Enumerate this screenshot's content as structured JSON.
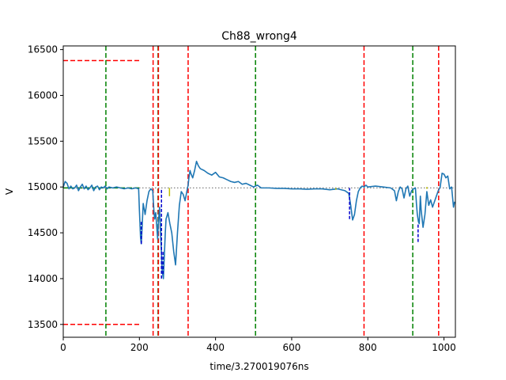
{
  "chart_data": {
    "type": "line",
    "title": "Ch88_wrong4",
    "xlabel": "time/3.270019076ns",
    "ylabel": "V",
    "xlim": [
      0,
      1030
    ],
    "ylim": [
      13360,
      16540
    ],
    "xticks": [
      0,
      200,
      400,
      600,
      800,
      1000
    ],
    "yticks": [
      13500,
      14000,
      14500,
      15000,
      15500,
      16000,
      16500
    ],
    "grid": false,
    "colors": {
      "signal": "#1f77b4",
      "red_markers": "#ff0000",
      "green_markers": "#008000",
      "baseline": "#808080",
      "dip_markers": "#0000cd",
      "small_markers": "#bfbf00"
    },
    "series": [
      {
        "style": "solid",
        "x": [
          0,
          5,
          10,
          15,
          20,
          25,
          30,
          35,
          40,
          45,
          50,
          55,
          60,
          65,
          70,
          75,
          80,
          85,
          90,
          95,
          100,
          105,
          110,
          115,
          120,
          130,
          140,
          150,
          160,
          170,
          180,
          190,
          198,
          200,
          203,
          205,
          207,
          210,
          213,
          215,
          220,
          225,
          230,
          235,
          238,
          240,
          243,
          245,
          248,
          250,
          253,
          255,
          258,
          260,
          263,
          265,
          268,
          270,
          275,
          280,
          285,
          290,
          295,
          300,
          305,
          310,
          315,
          320,
          325,
          328,
          330,
          333,
          335,
          340,
          345,
          350,
          355,
          360,
          370,
          380,
          390,
          400,
          410,
          420,
          430,
          440,
          450,
          460,
          470,
          480,
          490,
          500,
          510,
          520,
          540,
          560,
          580,
          600,
          620,
          640,
          660,
          680,
          700,
          720,
          740,
          750,
          755,
          760,
          765,
          770,
          775,
          780,
          785,
          790,
          795,
          800,
          820,
          840,
          860,
          870,
          875,
          880,
          885,
          890,
          895,
          900,
          905,
          910,
          915,
          920,
          925,
          928,
          930,
          933,
          935,
          938,
          940,
          945,
          950,
          955,
          960,
          965,
          970,
          980,
          985,
          990,
          995,
          1000,
          1005,
          1010,
          1015,
          1020,
          1025,
          1028
        ],
        "y": [
          15000,
          15060,
          15040,
          14980,
          15010,
          14980,
          14990,
          15020,
          14960,
          15000,
          15030,
          14980,
          15010,
          14970,
          14990,
          15020,
          14960,
          15000,
          15010,
          14970,
          15000,
          14990,
          15010,
          14980,
          15000,
          14990,
          15000,
          14990,
          14980,
          14990,
          14980,
          14990,
          14980,
          14750,
          14450,
          14380,
          14550,
          14820,
          14750,
          14700,
          14850,
          14950,
          14980,
          14960,
          14750,
          14650,
          14720,
          14600,
          14430,
          14620,
          14780,
          14550,
          14280,
          14080,
          14000,
          14200,
          14500,
          14650,
          14720,
          14600,
          14500,
          14300,
          14150,
          14500,
          14800,
          14950,
          14920,
          14850,
          14960,
          15020,
          15100,
          15180,
          15150,
          15100,
          15180,
          15280,
          15230,
          15200,
          15180,
          15150,
          15130,
          15160,
          15110,
          15100,
          15080,
          15060,
          15050,
          15060,
          15030,
          15040,
          15020,
          15000,
          15020,
          14990,
          14990,
          14985,
          14985,
          14980,
          14980,
          14975,
          14980,
          14980,
          14970,
          14980,
          14960,
          14930,
          14800,
          14640,
          14700,
          14850,
          14950,
          14990,
          15010,
          15000,
          15020,
          15000,
          15010,
          15000,
          14990,
          14960,
          14850,
          14950,
          15000,
          14980,
          14880,
          14980,
          15010,
          14900,
          14960,
          14980,
          14990,
          14800,
          14700,
          14620,
          14600,
          14900,
          14750,
          14560,
          14700,
          14950,
          14800,
          14860,
          14780,
          14900,
          14960,
          15000,
          15150,
          15140,
          15100,
          15120,
          14980,
          15000,
          14780,
          14840
        ]
      },
      {
        "style": "dotted",
        "x": [
          0,
          1030
        ],
        "y": [
          14990,
          14990
        ]
      }
    ],
    "vlines_red": [
      236,
      250,
      328,
      790,
      986
    ],
    "vlines_green": [
      112,
      249,
      505,
      918
    ],
    "hlines_red": [
      {
        "y": 16380,
        "x0": 0,
        "x1": 200
      },
      {
        "y": 13500,
        "x0": 0,
        "x1": 200
      }
    ],
    "hlines_green": [
      {
        "y": 14990,
        "x0": 0,
        "x1": 200
      }
    ],
    "dip_markers": [
      {
        "x": 205,
        "y0": 14380,
        "y1": 14620
      },
      {
        "x": 258,
        "y0": 14000,
        "y1": 14980
      },
      {
        "x": 262,
        "y0": 14050,
        "y1": 14300
      },
      {
        "x": 752,
        "y0": 14650,
        "y1": 14990
      },
      {
        "x": 932,
        "y0": 14400,
        "y1": 14600
      }
    ],
    "small_markers": [
      {
        "x": 279,
        "y0": 14900,
        "y1": 14990
      },
      {
        "x": 716,
        "y0": 14970,
        "y1": 14990
      },
      {
        "x": 955,
        "y0": 14980,
        "y1": 15000
      }
    ]
  }
}
